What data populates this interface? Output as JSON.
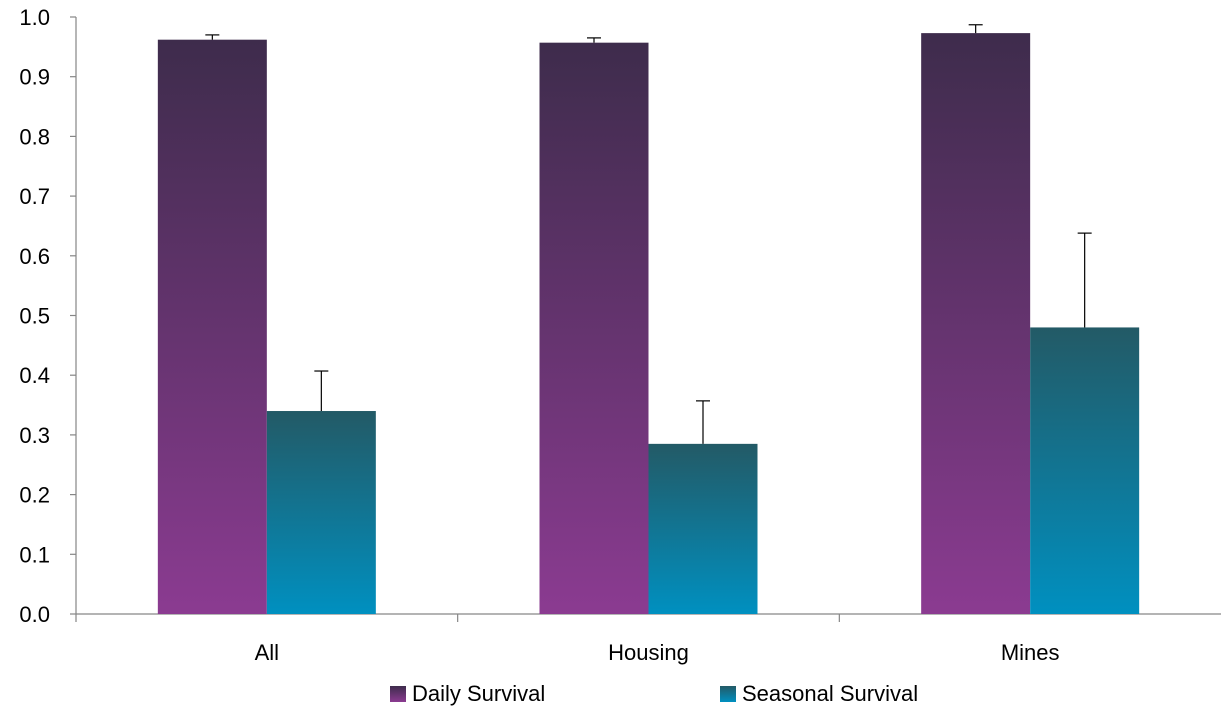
{
  "chart_data": {
    "type": "bar",
    "title": "",
    "xlabel": "",
    "ylabel": "",
    "categories": [
      "All",
      "Housing",
      "Mines"
    ],
    "ylim": [
      0,
      1.0
    ],
    "yticks": [
      "0.0",
      "0.1",
      "0.2",
      "0.3",
      "0.4",
      "0.5",
      "0.6",
      "0.7",
      "0.8",
      "0.9",
      "1.0"
    ],
    "grid": false,
    "legend_position": "bottom",
    "series": [
      {
        "name": "Daily Survival",
        "values": [
          0.962,
          0.957,
          0.973
        ],
        "error_plus": [
          0.008,
          0.008,
          0.014
        ],
        "color_top": "#3e2c4c",
        "color_bottom": "#8b3b91"
      },
      {
        "name": "Seasonal Survival",
        "values": [
          0.34,
          0.285,
          0.48
        ],
        "error_plus": [
          0.067,
          0.072,
          0.158
        ],
        "color_top": "#235a66",
        "color_bottom": "#0090c0"
      }
    ]
  }
}
